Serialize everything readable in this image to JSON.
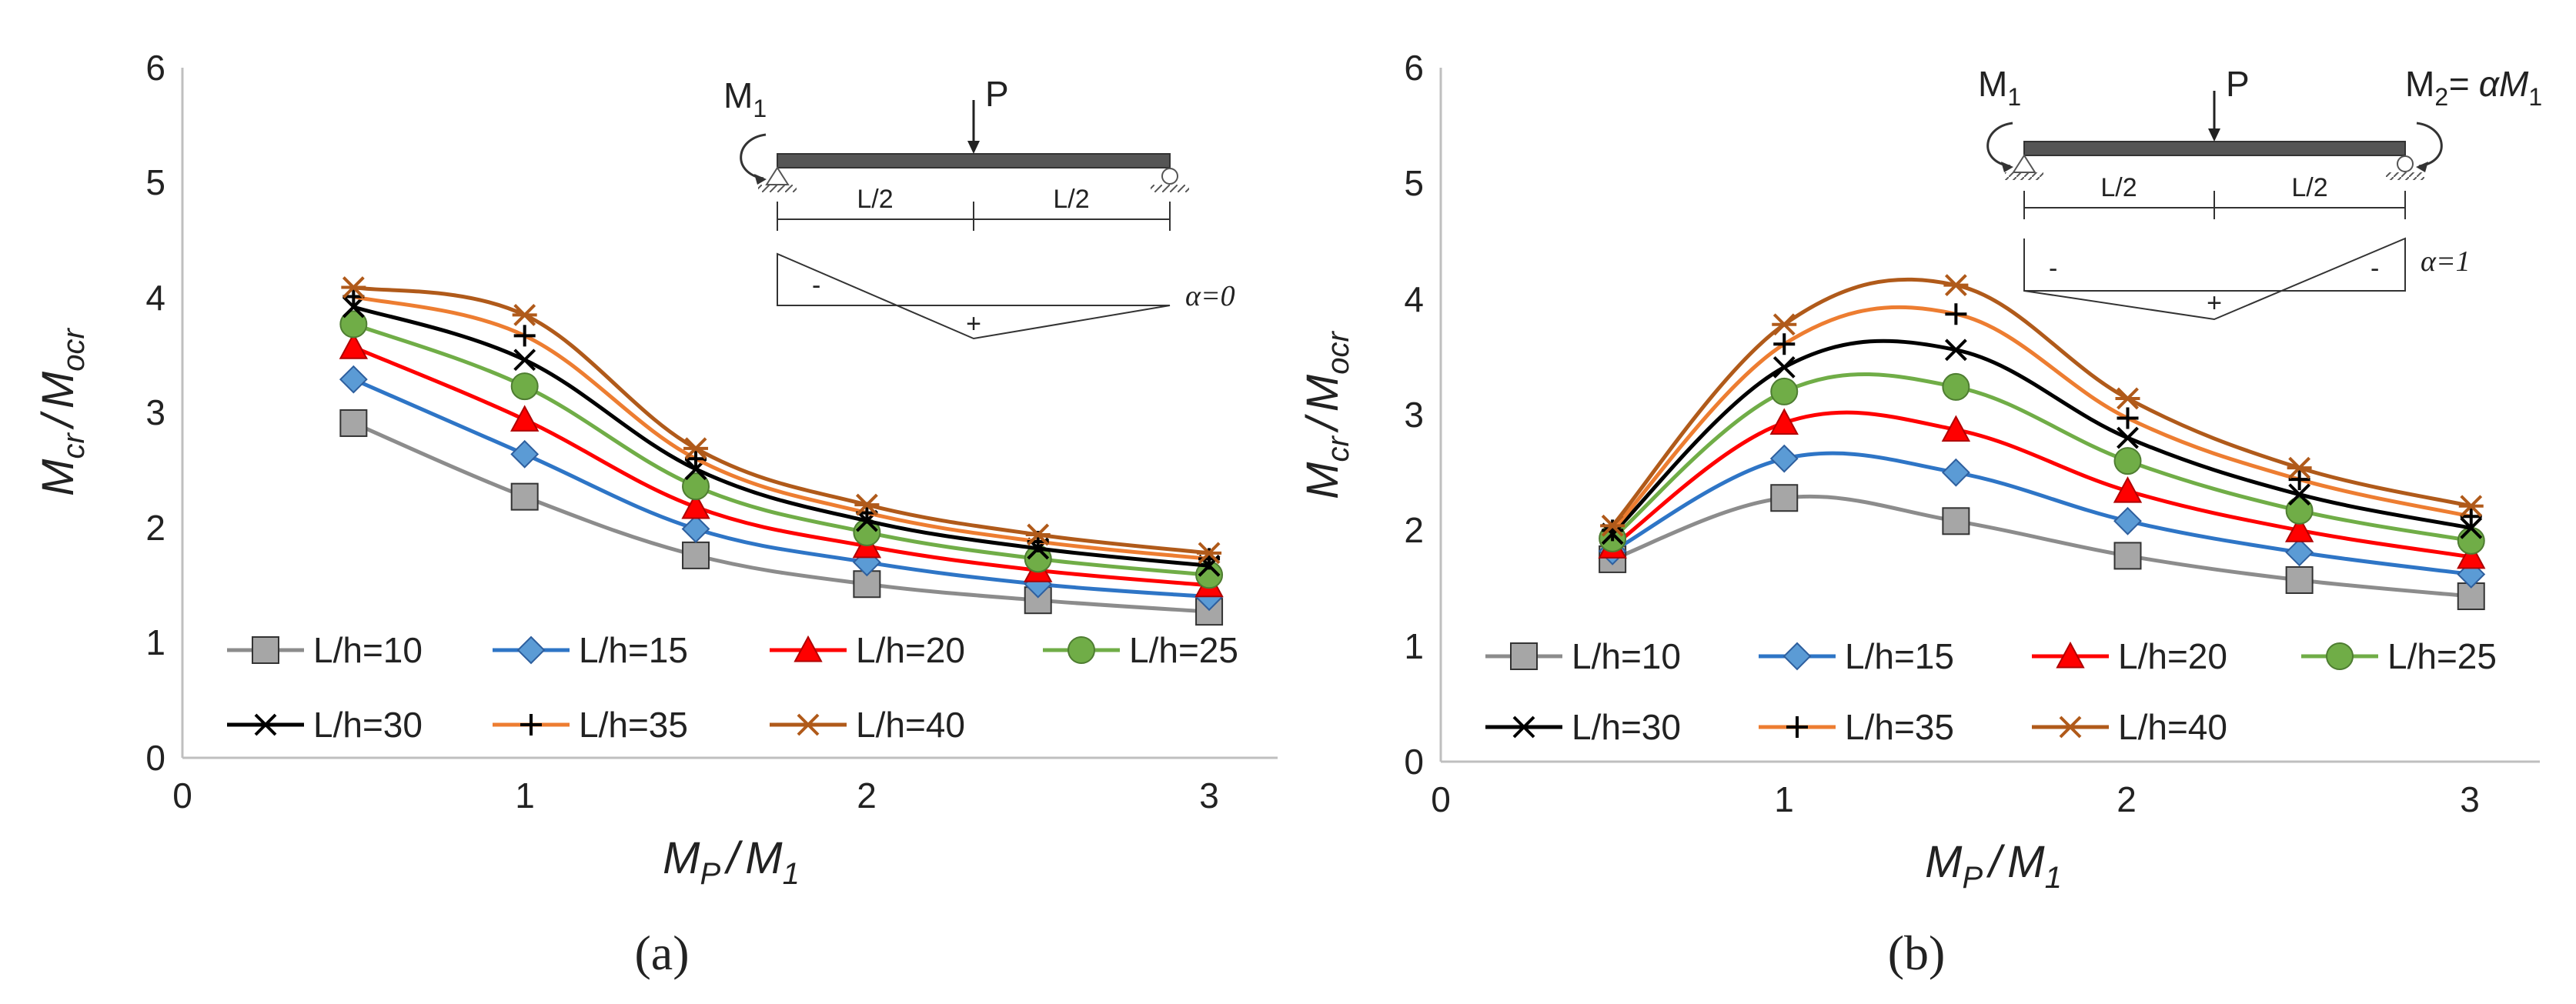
{
  "chart_data": [
    {
      "type": "line",
      "panel_label": "(a)",
      "xlabel": {
        "main": "M",
        "sub": "P",
        "sep": "/",
        "main2": "M",
        "sub2": "1"
      },
      "ylabel": {
        "main": "M",
        "sub": "cr",
        "sep": "/",
        "main2": "M",
        "sub2": "ocr"
      },
      "xlim": [
        0,
        3.2
      ],
      "ylim": [
        0,
        6
      ],
      "xticks": [
        "0",
        "1",
        "2",
        "3"
      ],
      "yticks": [
        "0",
        "1",
        "2",
        "3",
        "4",
        "5",
        "6"
      ],
      "x": [
        0.5,
        1,
        1.5,
        2,
        2.5,
        3
      ],
      "series": [
        {
          "name": "L/h=10",
          "values": [
            2.91,
            2.27,
            1.76,
            1.51,
            1.37,
            1.27
          ]
        },
        {
          "name": "L/h=15",
          "values": [
            3.29,
            2.64,
            1.99,
            1.7,
            1.51,
            1.4
          ]
        },
        {
          "name": "L/h=20",
          "values": [
            3.57,
            2.94,
            2.18,
            1.84,
            1.63,
            1.5
          ]
        },
        {
          "name": "L/h=25",
          "values": [
            3.77,
            3.23,
            2.36,
            1.96,
            1.73,
            1.59
          ]
        },
        {
          "name": "L/h=30",
          "values": [
            3.92,
            3.46,
            2.51,
            2.06,
            1.82,
            1.67
          ]
        },
        {
          "name": "L/h=35",
          "values": [
            4.01,
            3.67,
            2.6,
            2.13,
            1.88,
            1.73
          ]
        },
        {
          "name": "L/h=40",
          "values": [
            4.09,
            3.85,
            2.69,
            2.2,
            1.94,
            1.78
          ]
        }
      ],
      "inset": {
        "m1": "M",
        "m1_sub": "1",
        "p": "P",
        "half_left": "L/2",
        "half_right": "L/2",
        "minus": "-",
        "plus": "+",
        "alpha": "α=0"
      }
    },
    {
      "type": "line",
      "panel_label": "(b)",
      "xlabel": {
        "main": "M",
        "sub": "P",
        "sep": "/",
        "main2": "M",
        "sub2": "1"
      },
      "ylabel": {
        "main": "M",
        "sub": "cr",
        "sep": "/",
        "main2": "M",
        "sub2": "ocr"
      },
      "xlim": [
        0,
        3.2
      ],
      "ylim": [
        0,
        6
      ],
      "xticks": [
        "0",
        "1",
        "2",
        "3"
      ],
      "yticks": [
        "0",
        "1",
        "2",
        "3",
        "4",
        "5",
        "6"
      ],
      "x": [
        0.5,
        1,
        1.5,
        2,
        2.5,
        3
      ],
      "series": [
        {
          "name": "L/h=10",
          "values": [
            1.75,
            2.28,
            2.08,
            1.78,
            1.57,
            1.43
          ]
        },
        {
          "name": "L/h=15",
          "values": [
            1.82,
            2.62,
            2.5,
            2.08,
            1.81,
            1.62
          ]
        },
        {
          "name": "L/h=20",
          "values": [
            1.86,
            2.93,
            2.87,
            2.34,
            2.0,
            1.77
          ]
        },
        {
          "name": "L/h=25",
          "values": [
            1.93,
            3.2,
            3.24,
            2.6,
            2.17,
            1.91
          ]
        },
        {
          "name": "L/h=30",
          "values": [
            1.97,
            3.41,
            3.56,
            2.8,
            2.31,
            2.02
          ]
        },
        {
          "name": "L/h=35",
          "values": [
            2.0,
            3.61,
            3.87,
            2.97,
            2.44,
            2.12
          ]
        },
        {
          "name": "L/h=40",
          "values": [
            2.04,
            3.78,
            4.12,
            3.14,
            2.54,
            2.21
          ]
        }
      ],
      "inset": {
        "m1": "M",
        "m1_sub": "1",
        "p": "P",
        "half_left": "L/2",
        "half_right": "L/2",
        "minus_left": "-",
        "minus_right": "-",
        "plus": "+",
        "alpha": "α=1",
        "m2": "M",
        "m2_sub": "2",
        "m2_eq": "= αM",
        "m2_eq_sub": "1"
      }
    }
  ],
  "series_style": [
    {
      "color": "#8c8c8c",
      "marker": "square",
      "marker_fill": "#a6a6a6"
    },
    {
      "color": "#2e75c6",
      "marker": "diamond",
      "marker_fill": "#5b9bd5"
    },
    {
      "color": "#ff0000",
      "marker": "triangle",
      "marker_fill": "#ff0000"
    },
    {
      "color": "#70ad47",
      "marker": "circle",
      "marker_fill": "#70ad47"
    },
    {
      "color": "#000000",
      "marker": "x",
      "marker_fill": "#000000"
    },
    {
      "color": "#ed7d31",
      "marker": "plus",
      "marker_fill": "#000000"
    },
    {
      "color": "#b05a1a",
      "marker": "star",
      "marker_fill": "#b05a1a"
    }
  ]
}
